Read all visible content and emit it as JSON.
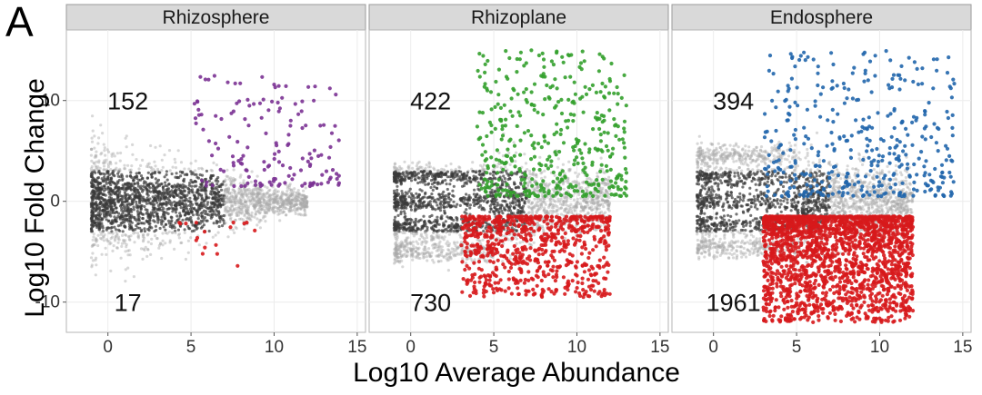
{
  "figure_label": "A",
  "chart_data": {
    "type": "scatter",
    "title": "",
    "xlabel": "Log10 Average Abundance",
    "ylabel": "Log10 Fold Change",
    "xlim": [
      -2.5,
      15.5
    ],
    "ylim": [
      -13,
      17
    ],
    "x_ticks": [
      0,
      5,
      10,
      15
    ],
    "x_tick_labels": [
      "0",
      "5",
      "10",
      "15"
    ],
    "y_ticks": [
      10,
      0,
      -10
    ],
    "y_tick_labels": [
      "10",
      "0",
      "-10"
    ],
    "grid": true,
    "colors": {
      "background_points": "#3a3a3a",
      "rhizosphere_enriched": "#7b3294",
      "rhizoplane_enriched": "#33a02c",
      "endosphere_enriched": "#2166ac",
      "depleted": "#d7191c"
    },
    "panels": [
      {
        "name": "Rhizosphere",
        "enriched_count": "152",
        "depleted_count": "17",
        "series": [
          {
            "name": "enriched",
            "color_key": "rhizosphere_enriched",
            "count": 152,
            "x_range": [
              5,
              14
            ],
            "y_range": [
              1.5,
              12.5
            ]
          },
          {
            "name": "depleted",
            "color_key": "depleted",
            "count": 17,
            "x_range": [
              4,
              9
            ],
            "y_range": [
              -6.5,
              -2
            ]
          }
        ]
      },
      {
        "name": "Rhizoplane",
        "enriched_count": "422",
        "depleted_count": "730",
        "series": [
          {
            "name": "enriched",
            "color_key": "rhizoplane_enriched",
            "count": 422,
            "x_range": [
              4,
              13
            ],
            "y_range": [
              0.5,
              15
            ]
          },
          {
            "name": "depleted",
            "color_key": "depleted",
            "count": 730,
            "x_range": [
              3,
              12
            ],
            "y_range": [
              -9.5,
              -1.5
            ]
          }
        ]
      },
      {
        "name": "Endosphere",
        "enriched_count": "394",
        "depleted_count": "1961",
        "series": [
          {
            "name": "enriched",
            "color_key": "endosphere_enriched",
            "count": 394,
            "x_range": [
              3,
              14.5
            ],
            "y_range": [
              0.5,
              15
            ]
          },
          {
            "name": "depleted",
            "color_key": "depleted",
            "count": 1961,
            "x_range": [
              3,
              12
            ],
            "y_range": [
              -12,
              -1.5
            ]
          }
        ]
      }
    ]
  }
}
